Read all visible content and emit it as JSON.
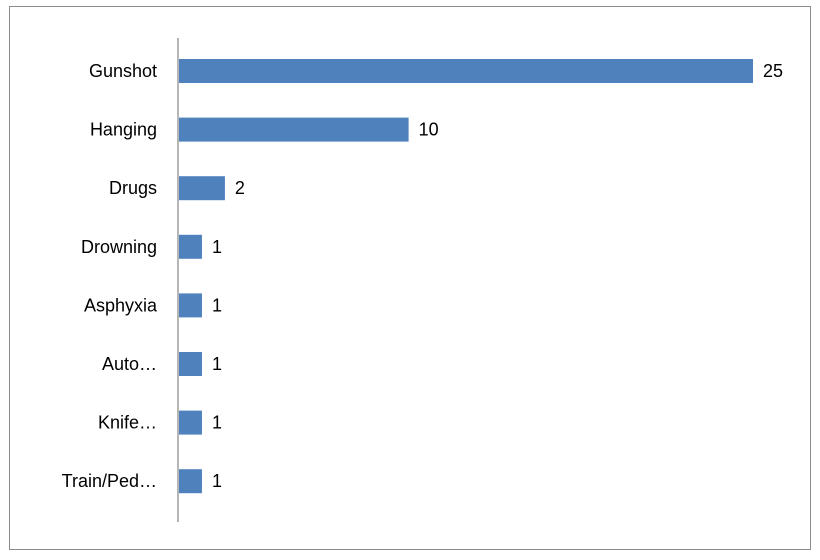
{
  "chart_data": {
    "type": "bar",
    "orientation": "horizontal",
    "categories": [
      "Gunshot",
      "Hanging",
      "Drugs",
      "Drowning",
      "Asphyxia",
      "Auto…",
      "Knife…",
      "Train/Ped…"
    ],
    "values": [
      25,
      10,
      2,
      1,
      1,
      1,
      1,
      1
    ],
    "value_labels": [
      "25",
      "10",
      "2",
      "1",
      "1",
      "1",
      "1",
      "1"
    ],
    "title": "",
    "xlabel": "",
    "ylabel": "",
    "xlim": [
      0,
      25
    ],
    "grid": false,
    "legend": "none",
    "bar_color": "#4f81bd"
  }
}
